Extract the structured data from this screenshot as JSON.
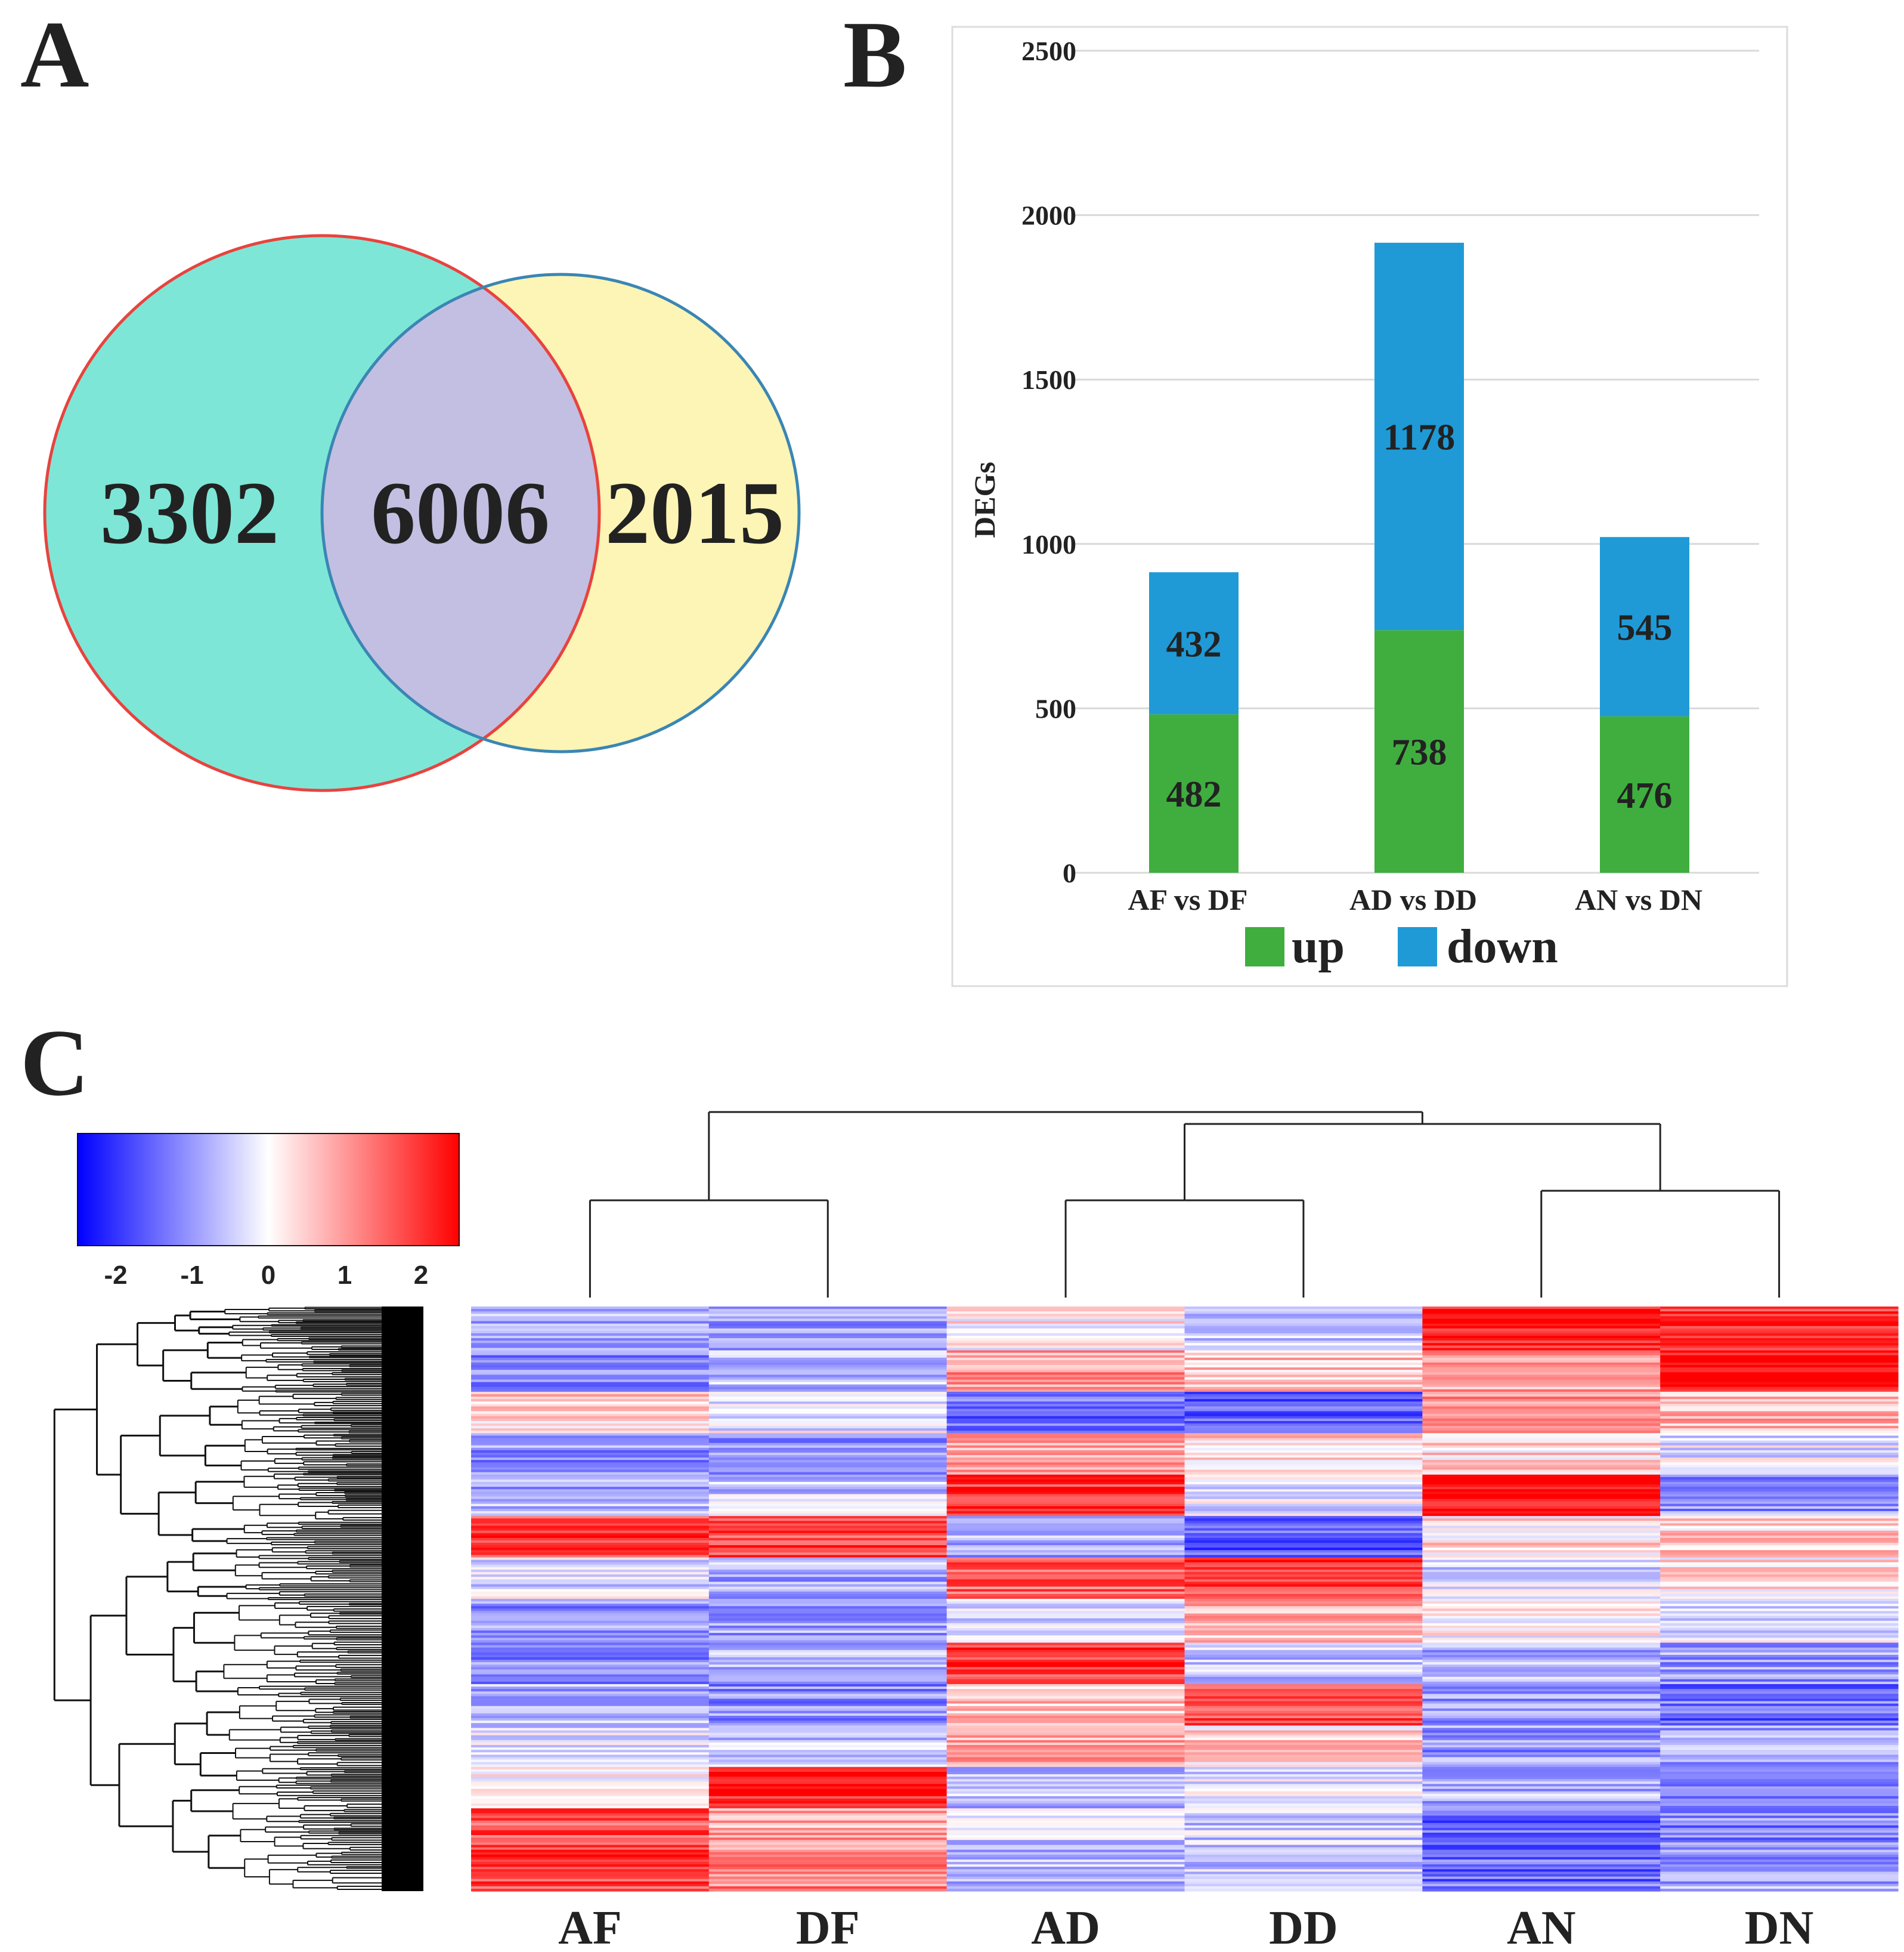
{
  "panels": {
    "a_letter": "A",
    "b_letter": "B",
    "c_letter": "C"
  },
  "colors": {
    "venn_left_fill": "#7ee6d6",
    "venn_left_stroke": "#e8433e",
    "venn_right_fill": "#fdf5b5",
    "venn_right_stroke": "#3a86b4",
    "venn_overlap_fill": "#c3bfe2",
    "bar_up": "#3fae3f",
    "bar_down": "#1f9ad6",
    "grid": "#d9d9d9",
    "heat_low": "#0000ff",
    "heat_mid": "#ffffff",
    "heat_high": "#ff0000"
  },
  "chart_data": [
    {
      "type": "venn",
      "sets": [
        "left",
        "right"
      ],
      "only_left": "3302",
      "intersection": "6006",
      "only_right": "2015"
    },
    {
      "type": "bar",
      "stacked": true,
      "title": "",
      "xlabel": "",
      "ylabel": "DEGs",
      "ylim": [
        0,
        2500
      ],
      "yticks": [
        0,
        500,
        1000,
        1500,
        2000,
        2500
      ],
      "grid": true,
      "categories": [
        "AF vs DF",
        "AD vs DD",
        "AN vs DN"
      ],
      "series": [
        {
          "name": "up",
          "values": [
            482,
            738,
            476
          ]
        },
        {
          "name": "down",
          "values": [
            432,
            1178,
            545
          ]
        }
      ],
      "legend": {
        "placement": "bottom",
        "entries": [
          "up",
          "down"
        ]
      }
    },
    {
      "type": "heatmap",
      "columns": [
        "AF",
        "DF",
        "AD",
        "DD",
        "AN",
        "DN"
      ],
      "color_scale": {
        "min": -2.5,
        "max": 2.5,
        "ticks": [
          "-2",
          "-1",
          "0",
          "1",
          "2"
        ]
      },
      "column_dendrogram": "((AF,DF),((AD,DD),(AN,DN)))",
      "row_dendrogram": true,
      "block_pattern": [
        [
          "AF",
          [
            -0.9,
            -1.2,
            0.4,
            -1.0,
            -0.8,
            1.9,
            -0.3,
            -1.0,
            -1.2,
            -0.7,
            -0.4,
            0.2,
            1.7,
            1.8
          ]
        ],
        [
          "DF",
          [
            -1.0,
            -0.6,
            -0.2,
            -1.2,
            -0.5,
            1.8,
            -0.8,
            -0.9,
            -0.6,
            -1.1,
            -0.5,
            2.1,
            0.9,
            1.2
          ]
        ],
        [
          "AD",
          [
            0.2,
            1.0,
            -1.4,
            0.9,
            2.0,
            -0.8,
            1.5,
            -0.5,
            1.9,
            0.6,
            0.8,
            -0.6,
            -0.4,
            -0.6
          ]
        ],
        [
          "DD",
          [
            -0.6,
            0.6,
            -1.5,
            0.5,
            -0.2,
            -1.6,
            1.9,
            0.7,
            -0.5,
            1.8,
            0.4,
            -0.3,
            -0.5,
            -0.5
          ]
        ],
        [
          "AN",
          [
            2.3,
            0.9,
            1.0,
            0.4,
            2.4,
            0.3,
            -0.4,
            0.1,
            -0.8,
            -1.0,
            -1.0,
            -0.7,
            -1.5,
            -1.4
          ]
        ],
        [
          "DN",
          [
            2.0,
            2.5,
            0.8,
            -0.2,
            -1.0,
            0.5,
            0.2,
            -0.3,
            -1.0,
            -1.4,
            -0.8,
            -1.4,
            -1.2,
            -0.9
          ]
        ]
      ]
    }
  ]
}
